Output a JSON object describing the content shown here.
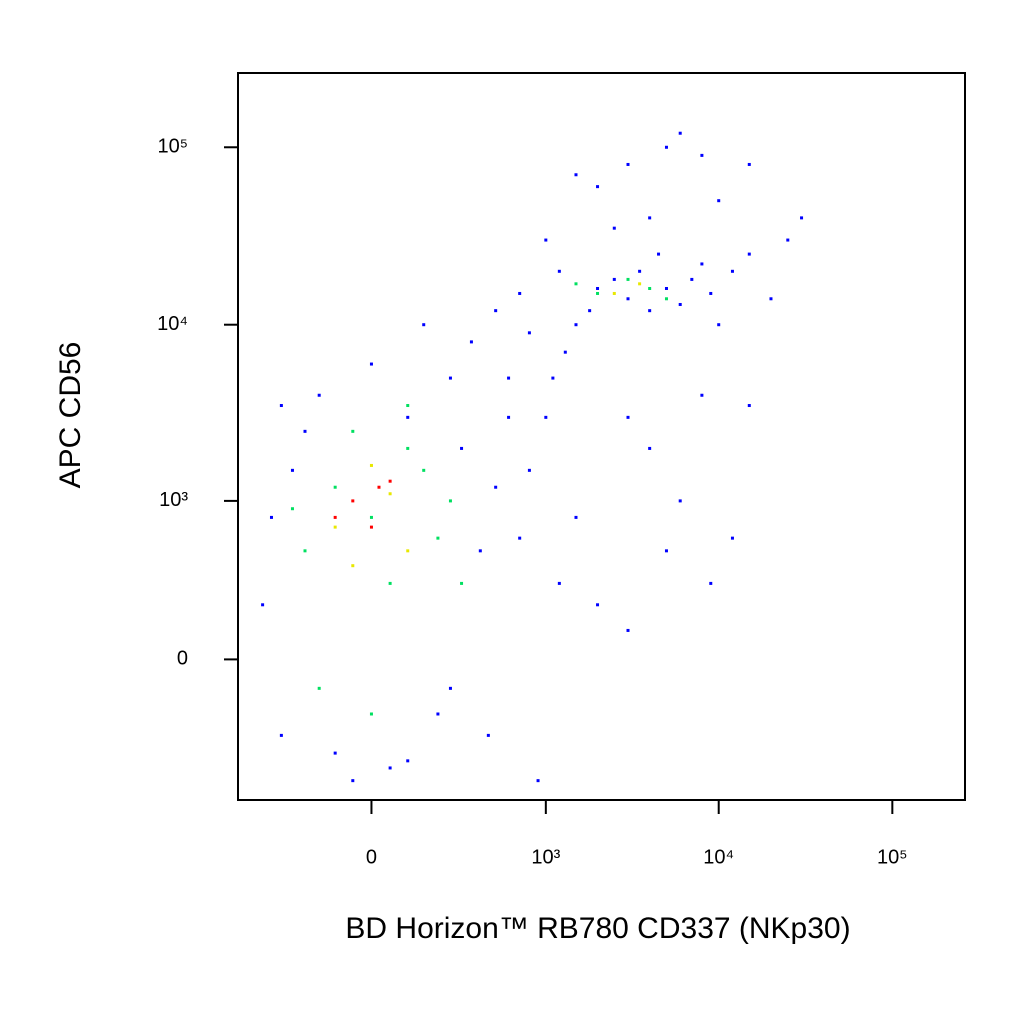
{
  "chart_data": {
    "type": "scatter",
    "x_label": "BD Horizon™ RB780 CD337 (NKp30)",
    "y_label": "APC  CD56",
    "xscale": "biexponential",
    "yscale": "biexponential",
    "xlim": [
      -570,
      262144
    ],
    "ylim": [
      -785,
      262144
    ],
    "xticks": [
      0,
      {
        "value": 1000,
        "label": "10³"
      },
      {
        "value": 10000,
        "label": "10⁴"
      },
      {
        "value": 100000,
        "label": "10⁵"
      }
    ],
    "yticks": [
      0,
      {
        "value": 1000,
        "label": "10³"
      },
      {
        "value": 10000,
        "label": "10⁴"
      },
      {
        "value": 100000,
        "label": "10⁵"
      }
    ],
    "series": [
      {
        "color": "#0000ff",
        "x": [
          -400,
          -300,
          -250,
          -150,
          -100,
          0,
          50,
          100,
          200,
          300,
          400,
          500,
          600,
          350,
          -350,
          -200,
          150,
          250,
          450,
          700,
          800,
          900,
          1200,
          1500,
          2000,
          3000,
          -50,
          100,
          -300,
          250,
          600,
          1000,
          1100,
          1300,
          800,
          500,
          700,
          1200,
          1000,
          1500,
          1800,
          2000,
          2500,
          3000,
          3500,
          4000,
          4500,
          5000,
          6000,
          7000,
          8000,
          9000,
          10000,
          12000,
          15000,
          20000,
          25000,
          30000,
          2000,
          3000,
          5000,
          6000,
          8000,
          15000,
          4000,
          2500,
          1500,
          10000,
          3000,
          4000,
          6000,
          8000,
          12000,
          15000,
          5000,
          9000
        ],
        "y": [
          200,
          -300,
          1500,
          4000,
          -400,
          6000,
          -500,
          3000,
          -200,
          2000,
          500,
          1200,
          3000,
          8000,
          800,
          2500,
          10000,
          -100,
          -300,
          600,
          1500,
          -600,
          300,
          800,
          200,
          100,
          -600,
          -450,
          3500,
          5000,
          5000,
          3000,
          5000,
          7000,
          9000,
          12000,
          15000,
          20000,
          30000,
          10000,
          12000,
          16000,
          18000,
          14000,
          20000,
          12000,
          25000,
          16000,
          13000,
          18000,
          22000,
          15000,
          10000,
          20000,
          25000,
          14000,
          30000,
          40000,
          60000,
          80000,
          100000,
          120000,
          90000,
          80000,
          40000,
          35000,
          70000,
          50000,
          3000,
          2000,
          1000,
          4000,
          600,
          3500,
          500,
          300
        ]
      },
      {
        "color": "#00e060",
        "x": [
          -200,
          -100,
          0,
          100,
          200,
          -150,
          50,
          150,
          -50,
          250,
          300,
          -250,
          0,
          100,
          2000,
          3000,
          5000,
          1500,
          4000
        ],
        "y": [
          500,
          1200,
          800,
          2000,
          600,
          -100,
          300,
          1500,
          2500,
          1000,
          300,
          900,
          -200,
          3500,
          15000,
          18000,
          14000,
          17000,
          16000
        ]
      },
      {
        "color": "#e8e800",
        "x": [
          -100,
          50,
          100,
          0,
          -50,
          2500,
          3500
        ],
        "y": [
          700,
          1100,
          500,
          1600,
          400,
          15000,
          17000
        ]
      },
      {
        "color": "#ff0000",
        "x": [
          -50,
          0,
          50,
          -100,
          20
        ],
        "y": [
          1000,
          700,
          1300,
          800,
          1200
        ]
      }
    ]
  }
}
